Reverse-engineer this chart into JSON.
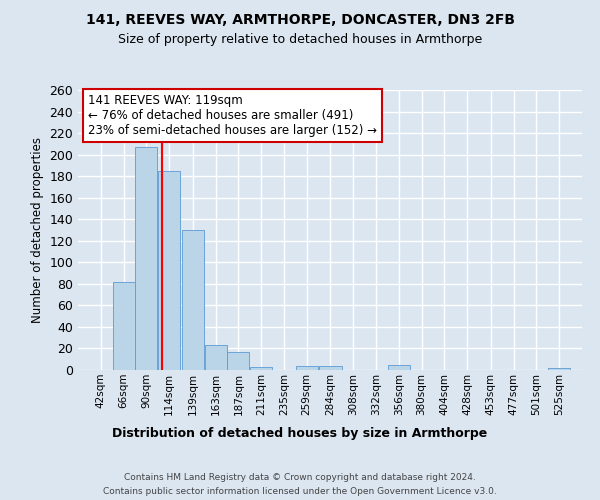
{
  "title1": "141, REEVES WAY, ARMTHORPE, DONCASTER, DN3 2FB",
  "title2": "Size of property relative to detached houses in Armthorpe",
  "xlabel": "Distribution of detached houses by size in Armthorpe",
  "ylabel": "Number of detached properties",
  "bin_starts": [
    42,
    66,
    90,
    114,
    139,
    163,
    187,
    211,
    235,
    259,
    284,
    308,
    332,
    356,
    380,
    404,
    428,
    453,
    477,
    501,
    525
  ],
  "bin_width": 24,
  "values": [
    0,
    82,
    207,
    185,
    130,
    23,
    17,
    3,
    0,
    4,
    4,
    0,
    0,
    5,
    0,
    0,
    0,
    0,
    0,
    0,
    2
  ],
  "bar_color": "#bad4e8",
  "bar_edge_color": "#5b9bd5",
  "bg_color": "#dce6f1",
  "grid_color": "#ffffff",
  "red_line_x": 119,
  "annotation_line1": "141 REEVES WAY: 119sqm",
  "annotation_line2": "← 76% of detached houses are smaller (491)",
  "annotation_line3": "23% of semi-detached houses are larger (152) →",
  "annotation_box_facecolor": "#ffffff",
  "annotation_box_edgecolor": "#cc0000",
  "ylim": [
    0,
    260
  ],
  "yticks": [
    0,
    20,
    40,
    60,
    80,
    100,
    120,
    140,
    160,
    180,
    200,
    220,
    240,
    260
  ],
  "footer1": "Contains HM Land Registry data © Crown copyright and database right 2024.",
  "footer2": "Contains public sector information licensed under the Open Government Licence v3.0."
}
